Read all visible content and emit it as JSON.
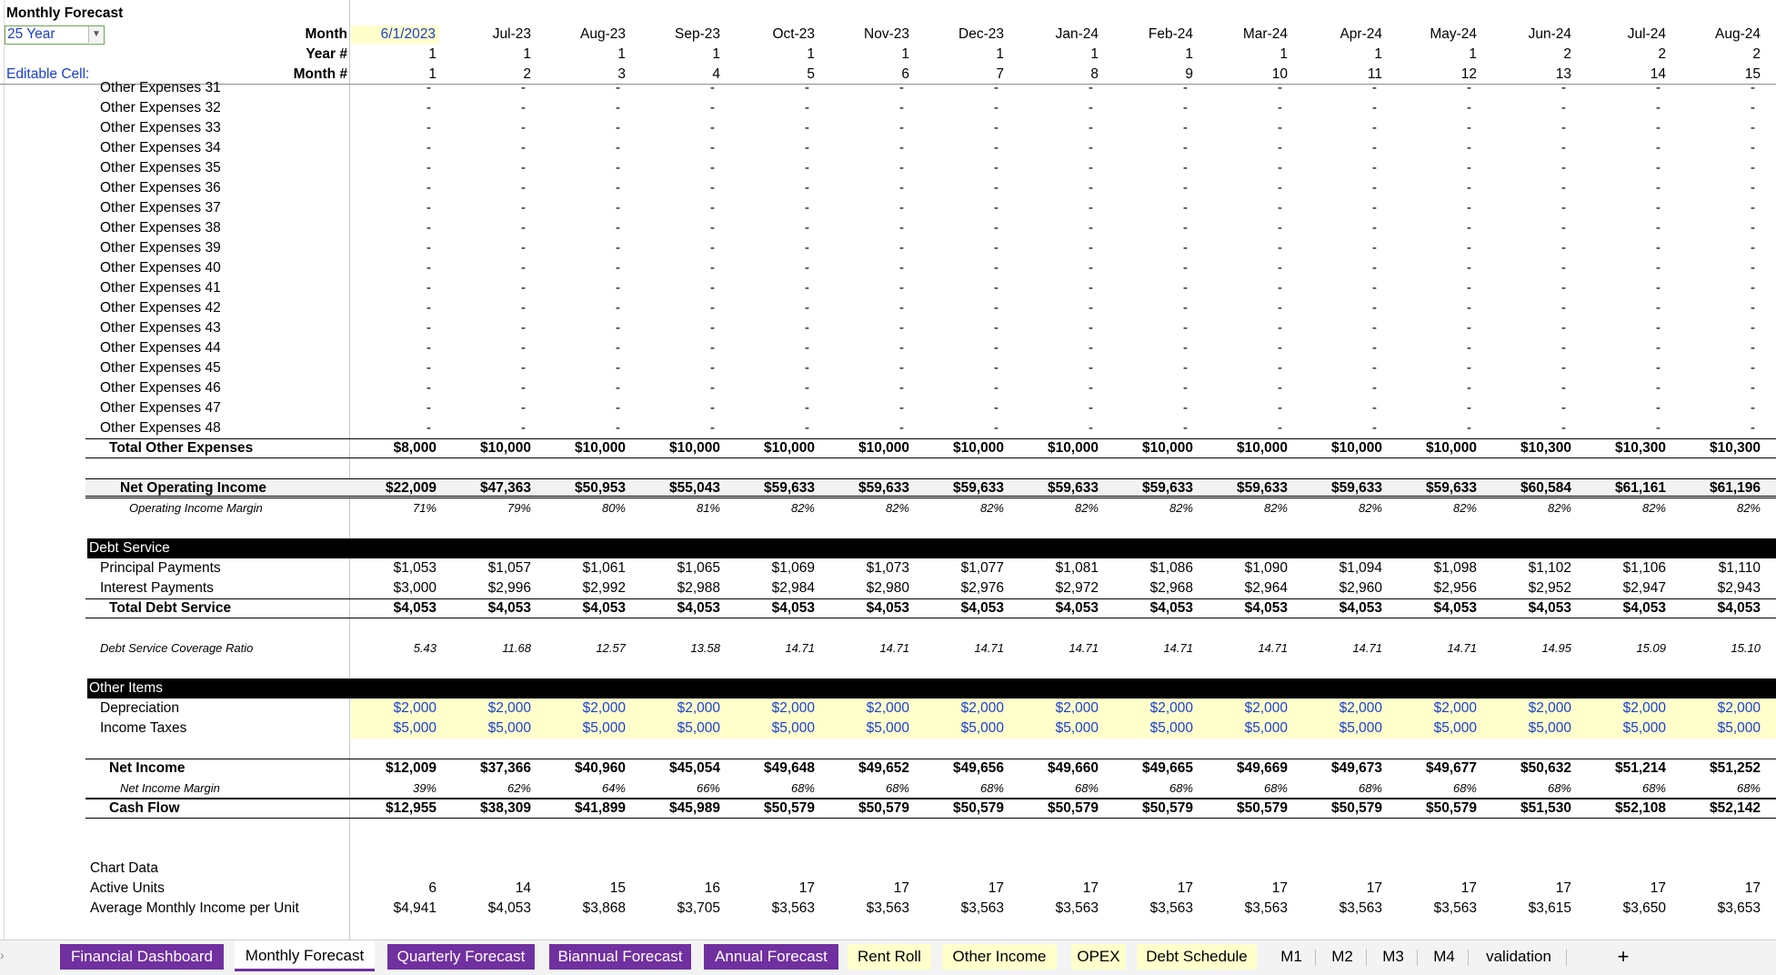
{
  "sheet_title": "Monthly Forecast",
  "scenario_value": "25 Year",
  "editable_label": "Editable Cell:",
  "header_labels": {
    "month": "Month",
    "year": "Year #",
    "month_num": "Month #"
  },
  "columns": [
    {
      "month": "6/1/2023",
      "year": "1",
      "mnum": "1"
    },
    {
      "month": "Jul-23",
      "year": "1",
      "mnum": "2"
    },
    {
      "month": "Aug-23",
      "year": "1",
      "mnum": "3"
    },
    {
      "month": "Sep-23",
      "year": "1",
      "mnum": "4"
    },
    {
      "month": "Oct-23",
      "year": "1",
      "mnum": "5"
    },
    {
      "month": "Nov-23",
      "year": "1",
      "mnum": "6"
    },
    {
      "month": "Dec-23",
      "year": "1",
      "mnum": "7"
    },
    {
      "month": "Jan-24",
      "year": "1",
      "mnum": "8"
    },
    {
      "month": "Feb-24",
      "year": "1",
      "mnum": "9"
    },
    {
      "month": "Mar-24",
      "year": "1",
      "mnum": "10"
    },
    {
      "month": "Apr-24",
      "year": "1",
      "mnum": "11"
    },
    {
      "month": "May-24",
      "year": "1",
      "mnum": "12"
    },
    {
      "month": "Jun-24",
      "year": "2",
      "mnum": "13"
    },
    {
      "month": "Jul-24",
      "year": "2",
      "mnum": "14"
    },
    {
      "month": "Aug-24",
      "year": "2",
      "mnum": "15"
    }
  ],
  "rows": [
    {
      "label": "Other Expenses 31",
      "fill": "-"
    },
    {
      "label": "Other Expenses 32",
      "fill": "-"
    },
    {
      "label": "Other Expenses 33",
      "fill": "-"
    },
    {
      "label": "Other Expenses 34",
      "fill": "-"
    },
    {
      "label": "Other Expenses 35",
      "fill": "-"
    },
    {
      "label": "Other Expenses 36",
      "fill": "-"
    },
    {
      "label": "Other Expenses 37",
      "fill": "-"
    },
    {
      "label": "Other Expenses 38",
      "fill": "-"
    },
    {
      "label": "Other Expenses 39",
      "fill": "-"
    },
    {
      "label": "Other Expenses 40",
      "fill": "-"
    },
    {
      "label": "Other Expenses 41",
      "fill": "-"
    },
    {
      "label": "Other Expenses 42",
      "fill": "-"
    },
    {
      "label": "Other Expenses 43",
      "fill": "-"
    },
    {
      "label": "Other Expenses 44",
      "fill": "-"
    },
    {
      "label": "Other Expenses 45",
      "fill": "-"
    },
    {
      "label": "Other Expenses 46",
      "fill": "-"
    },
    {
      "label": "Other Expenses 47",
      "fill": "-"
    },
    {
      "label": "Other Expenses 48",
      "fill": "-"
    },
    {
      "label": "Total Other Expenses",
      "values": [
        "$8,000",
        "$10,000",
        "$10,000",
        "$10,000",
        "$10,000",
        "$10,000",
        "$10,000",
        "$10,000",
        "$10,000",
        "$10,000",
        "$10,000",
        "$10,000",
        "$10,300",
        "$10,300",
        "$10,300"
      ]
    },
    {
      "label": "Net Operating Income",
      "values": [
        "$22,009",
        "$47,363",
        "$50,953",
        "$55,043",
        "$59,633",
        "$59,633",
        "$59,633",
        "$59,633",
        "$59,633",
        "$59,633",
        "$59,633",
        "$59,633",
        "$60,584",
        "$61,161",
        "$61,196"
      ]
    },
    {
      "label": "Operating Income Margin",
      "values": [
        "71%",
        "79%",
        "80%",
        "81%",
        "82%",
        "82%",
        "82%",
        "82%",
        "82%",
        "82%",
        "82%",
        "82%",
        "82%",
        "82%",
        "82%"
      ]
    },
    {
      "label": "Debt Service"
    },
    {
      "label": "Principal Payments",
      "values": [
        "$1,053",
        "$1,057",
        "$1,061",
        "$1,065",
        "$1,069",
        "$1,073",
        "$1,077",
        "$1,081",
        "$1,086",
        "$1,090",
        "$1,094",
        "$1,098",
        "$1,102",
        "$1,106",
        "$1,110"
      ]
    },
    {
      "label": "Interest Payments",
      "values": [
        "$3,000",
        "$2,996",
        "$2,992",
        "$2,988",
        "$2,984",
        "$2,980",
        "$2,976",
        "$2,972",
        "$2,968",
        "$2,964",
        "$2,960",
        "$2,956",
        "$2,952",
        "$2,947",
        "$2,943"
      ]
    },
    {
      "label": "Total Debt Service",
      "values": [
        "$4,053",
        "$4,053",
        "$4,053",
        "$4,053",
        "$4,053",
        "$4,053",
        "$4,053",
        "$4,053",
        "$4,053",
        "$4,053",
        "$4,053",
        "$4,053",
        "$4,053",
        "$4,053",
        "$4,053"
      ]
    },
    {
      "label": "Debt Service Coverage Ratio",
      "values": [
        "5.43",
        "11.68",
        "12.57",
        "13.58",
        "14.71",
        "14.71",
        "14.71",
        "14.71",
        "14.71",
        "14.71",
        "14.71",
        "14.71",
        "14.95",
        "15.09",
        "15.10"
      ]
    },
    {
      "label": "Other Items"
    },
    {
      "label": "Depreciation",
      "values": [
        "$2,000",
        "$2,000",
        "$2,000",
        "$2,000",
        "$2,000",
        "$2,000",
        "$2,000",
        "$2,000",
        "$2,000",
        "$2,000",
        "$2,000",
        "$2,000",
        "$2,000",
        "$2,000",
        "$2,000"
      ]
    },
    {
      "label": "Income Taxes",
      "values": [
        "$5,000",
        "$5,000",
        "$5,000",
        "$5,000",
        "$5,000",
        "$5,000",
        "$5,000",
        "$5,000",
        "$5,000",
        "$5,000",
        "$5,000",
        "$5,000",
        "$5,000",
        "$5,000",
        "$5,000"
      ]
    },
    {
      "label": "Net Income",
      "values": [
        "$12,009",
        "$37,366",
        "$40,960",
        "$45,054",
        "$49,648",
        "$49,652",
        "$49,656",
        "$49,660",
        "$49,665",
        "$49,669",
        "$49,673",
        "$49,677",
        "$50,632",
        "$51,214",
        "$51,252"
      ]
    },
    {
      "label": "Net Income Margin",
      "values": [
        "39%",
        "62%",
        "64%",
        "66%",
        "68%",
        "68%",
        "68%",
        "68%",
        "68%",
        "68%",
        "68%",
        "68%",
        "68%",
        "68%",
        "68%"
      ]
    },
    {
      "label": "Cash Flow",
      "values": [
        "$12,955",
        "$38,309",
        "$41,899",
        "$45,989",
        "$50,579",
        "$50,579",
        "$50,579",
        "$50,579",
        "$50,579",
        "$50,579",
        "$50,579",
        "$50,579",
        "$51,530",
        "$52,108",
        "$52,142"
      ]
    },
    {
      "label": "Chart Data"
    },
    {
      "label": "Active Units",
      "values": [
        "6",
        "14",
        "15",
        "16",
        "17",
        "17",
        "17",
        "17",
        "17",
        "17",
        "17",
        "17",
        "17",
        "17",
        "17"
      ]
    },
    {
      "label": "Average Monthly Income per Unit",
      "values": [
        "$4,941",
        "$4,053",
        "$3,868",
        "$3,705",
        "$3,563",
        "$3,563",
        "$3,563",
        "$3,563",
        "$3,563",
        "$3,563",
        "$3,563",
        "$3,563",
        "$3,615",
        "$3,650",
        "$3,653"
      ]
    }
  ],
  "tabs": [
    {
      "label": "Financial Dashboard"
    },
    {
      "label": "Monthly Forecast"
    },
    {
      "label": "Quarterly Forecast"
    },
    {
      "label": "Biannual Forecast"
    },
    {
      "label": "Annual Forecast"
    },
    {
      "label": "Rent Roll"
    },
    {
      "label": "Other Income"
    },
    {
      "label": "OPEX"
    },
    {
      "label": "Debt Schedule"
    },
    {
      "label": "M1"
    },
    {
      "label": "M2"
    },
    {
      "label": "M3"
    },
    {
      "label": "M4"
    },
    {
      "label": "validation"
    }
  ],
  "add_sheet_glyph": "+",
  "nav_glyph": "›",
  "colors": {
    "tab_purple": "#7030a0",
    "tab_yellow": "#ffffcc",
    "input_blue": "#1a3fcf",
    "input_fill": "#ffffcc"
  }
}
